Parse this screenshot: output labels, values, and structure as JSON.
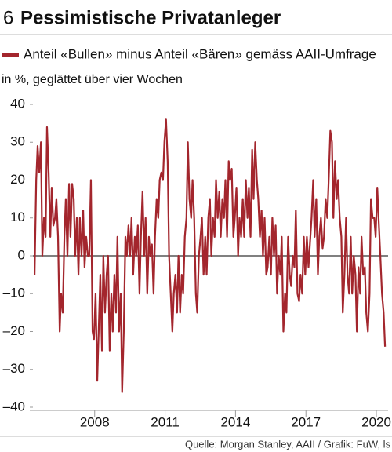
{
  "chart_data": {
    "type": "line",
    "number": "6",
    "title": "Pessimistische Privatanleger",
    "ylabel": "in %, geglättet über vier Wochen",
    "source": "Quelle: Morgan Stanley, AAII / Grafik: FuW, ls",
    "x": [
      2005.44,
      2005.51,
      2005.57,
      2005.64,
      2005.71,
      2005.77,
      2005.84,
      2005.91,
      2005.97,
      2006.04,
      2006.11,
      2006.17,
      2006.24,
      2006.31,
      2006.37,
      2006.44,
      2006.51,
      2006.57,
      2006.64,
      2006.71,
      2006.77,
      2006.84,
      2006.91,
      2006.97,
      2007.04,
      2007.11,
      2007.17,
      2007.24,
      2007.31,
      2007.37,
      2007.44,
      2007.51,
      2007.57,
      2007.64,
      2007.71,
      2007.77,
      2007.84,
      2007.91,
      2007.97,
      2008.04,
      2008.11,
      2008.17,
      2008.24,
      2008.31,
      2008.37,
      2008.44,
      2008.51,
      2008.57,
      2008.64,
      2008.71,
      2008.77,
      2008.84,
      2008.91,
      2008.97,
      2009.04,
      2009.11,
      2009.17,
      2009.24,
      2009.31,
      2009.37,
      2009.44,
      2009.51,
      2009.57,
      2009.64,
      2009.71,
      2009.77,
      2009.84,
      2009.91,
      2009.97,
      2010.04,
      2010.11,
      2010.17,
      2010.24,
      2010.31,
      2010.37,
      2010.44,
      2010.51,
      2010.57,
      2010.64,
      2010.71,
      2010.77,
      2010.84,
      2010.91,
      2010.97,
      2011.04,
      2011.11,
      2011.17,
      2011.24,
      2011.31,
      2011.37,
      2011.44,
      2011.51,
      2011.57,
      2011.64,
      2011.71,
      2011.77,
      2011.84,
      2011.91,
      2011.97,
      2012.04,
      2012.11,
      2012.17,
      2012.24,
      2012.31,
      2012.37,
      2012.44,
      2012.51,
      2012.57,
      2012.64,
      2012.71,
      2012.77,
      2012.84,
      2012.91,
      2012.97,
      2013.04,
      2013.11,
      2013.17,
      2013.24,
      2013.31,
      2013.37,
      2013.44,
      2013.51,
      2013.57,
      2013.64,
      2013.71,
      2013.77,
      2013.84,
      2013.91,
      2013.97,
      2014.04,
      2014.11,
      2014.17,
      2014.24,
      2014.31,
      2014.37,
      2014.44,
      2014.51,
      2014.57,
      2014.64,
      2014.71,
      2014.77,
      2014.84,
      2014.91,
      2014.97,
      2015.04,
      2015.11,
      2015.17,
      2015.24,
      2015.31,
      2015.37,
      2015.44,
      2015.51,
      2015.57,
      2015.64,
      2015.71,
      2015.77,
      2015.84,
      2015.91,
      2015.97,
      2016.04,
      2016.11,
      2016.17,
      2016.24,
      2016.31,
      2016.37,
      2016.44,
      2016.51,
      2016.57,
      2016.64,
      2016.71,
      2016.77,
      2016.84,
      2016.91,
      2016.97,
      2017.04,
      2017.11,
      2017.17,
      2017.24,
      2017.31,
      2017.37,
      2017.44,
      2017.51,
      2017.57,
      2017.64,
      2017.71,
      2017.77,
      2017.84,
      2017.91,
      2017.97,
      2018.04,
      2018.11,
      2018.17,
      2018.24,
      2018.31,
      2018.37,
      2018.44,
      2018.51,
      2018.57,
      2018.64,
      2018.71,
      2018.77,
      2018.84,
      2018.91,
      2018.97,
      2019.04,
      2019.11,
      2019.17,
      2019.24,
      2019.31,
      2019.37,
      2019.44,
      2019.51,
      2019.57,
      2019.64,
      2019.71,
      2019.77,
      2019.84,
      2019.91,
      2019.97,
      2020.04,
      2020.11,
      2020.17,
      2020.24,
      2020.31,
      2020.37
    ],
    "series": [
      {
        "name": "Anteil «Bullen» minus Anteil «Bären» gemäss AAII-Umfrage",
        "color": "#a3262d",
        "values": [
          -5,
          20,
          29,
          22,
          30,
          0,
          10,
          5,
          34,
          22,
          5,
          18,
          8,
          10,
          15,
          5,
          -20,
          -10,
          -15,
          5,
          15,
          0,
          19,
          5,
          19,
          15,
          0,
          10,
          -5,
          10,
          0,
          12,
          -3,
          5,
          0,
          0,
          20,
          -20,
          -22,
          -10,
          -33,
          -20,
          -5,
          -25,
          0,
          -15,
          -5,
          0,
          -25,
          -10,
          -20,
          -5,
          -15,
          5,
          -20,
          -10,
          -36,
          -20,
          5,
          0,
          8,
          0,
          10,
          -5,
          5,
          0,
          8,
          -10,
          5,
          17,
          0,
          10,
          -10,
          5,
          0,
          3,
          -10,
          5,
          15,
          10,
          20,
          22,
          20,
          30,
          36,
          25,
          0,
          -10,
          -20,
          -10,
          -5,
          -15,
          0,
          -15,
          -5,
          -10,
          5,
          10,
          30,
          15,
          10,
          20,
          10,
          -10,
          -15,
          0,
          5,
          10,
          -5,
          5,
          -5,
          10,
          15,
          0,
          10,
          5,
          20,
          10,
          17,
          5,
          15,
          10,
          20,
          5,
          25,
          20,
          23,
          5,
          10,
          18,
          0,
          10,
          5,
          15,
          5,
          20,
          10,
          18,
          5,
          28,
          15,
          30,
          20,
          15,
          5,
          12,
          0,
          10,
          -5,
          -3,
          5,
          -5,
          10,
          0,
          8,
          -10,
          0,
          -5,
          5,
          -20,
          -10,
          -15,
          5,
          -5,
          -8,
          0,
          -3,
          12,
          -10,
          -12,
          -5,
          -10,
          5,
          -5,
          5,
          -3,
          3,
          10,
          20,
          5,
          15,
          -5,
          5,
          10,
          2,
          5,
          15,
          10,
          20,
          33,
          30,
          10,
          25,
          15,
          20,
          10,
          5,
          -15,
          -5,
          10,
          -5,
          -10,
          5,
          -10,
          0,
          -5,
          -20,
          -3,
          -10,
          5,
          -5,
          -3,
          -15,
          -20,
          -10,
          15,
          10,
          10,
          5,
          18,
          8,
          0,
          -10,
          -15,
          -24
        ]
      }
    ],
    "xlim": [
      2005.37,
      2020.5
    ],
    "xticks": [
      2008,
      2011,
      2014,
      2017,
      2020
    ],
    "ylim": [
      -40,
      40
    ],
    "yticks": [
      40,
      30,
      20,
      10,
      0,
      {
        "value": -10,
        "label": "–10"
      },
      {
        "value": -20,
        "label": "–20"
      },
      {
        "value": -30,
        "label": "–30"
      },
      {
        "value": -40,
        "label": "–40"
      }
    ],
    "zero_line": true
  }
}
